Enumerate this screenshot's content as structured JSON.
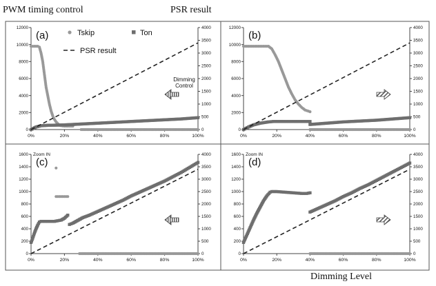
{
  "header": {
    "left_label": "PWM timing control",
    "right_label": "PSR result",
    "bottom_label": "Dimming Level"
  },
  "colors": {
    "tskip": "#999999",
    "ton": "#6e6e6e",
    "psr": "#222222",
    "frame": "#555555"
  },
  "legend": {
    "tskip": "Tskip",
    "ton": "Ton",
    "psr": "PSR result"
  },
  "icons": {
    "left": "left-arrow-hatched-icon",
    "right": "right-arrow-hatched-icon"
  },
  "chart_data": [
    {
      "panel": "(a)",
      "type": "scatter",
      "xlabel": "",
      "ylabel": "",
      "annotation": "Dimming Control",
      "arrow": "left",
      "xlim": [
        0,
        100
      ],
      "xticks": [
        "0%",
        "20%",
        "40%",
        "60%",
        "80%",
        "100%"
      ],
      "ylim": [
        0,
        12000
      ],
      "yticks": [
        0,
        2000,
        4000,
        6000,
        8000,
        10000,
        12000
      ],
      "y2lim": [
        0,
        4000
      ],
      "y2ticks": [
        0,
        500,
        1000,
        1500,
        2000,
        2500,
        3000,
        3500,
        4000
      ],
      "series": [
        {
          "name": "Tskip",
          "marker": "circle",
          "axis": "left",
          "segments": [
            [
              [
                0,
                9800
              ],
              [
                2,
                9800
              ],
              [
                4,
                9800
              ],
              [
                5,
                9700
              ],
              [
                6,
                9000
              ],
              [
                7,
                8000
              ],
              [
                8,
                6500
              ],
              [
                9,
                5000
              ],
              [
                10,
                4000
              ],
              [
                11,
                3000
              ],
              [
                12,
                2200
              ],
              [
                13,
                1600
              ],
              [
                14,
                1200
              ],
              [
                15,
                900
              ],
              [
                16,
                700
              ],
              [
                17,
                500
              ],
              [
                18,
                450
              ],
              [
                20,
                400
              ],
              [
                22,
                400
              ],
              [
                25,
                400
              ]
            ],
            [
              [
                30,
                0
              ],
              [
                100,
                0
              ]
            ]
          ]
        },
        {
          "name": "Ton",
          "marker": "square",
          "axis": "left",
          "segments": [
            [
              [
                0,
                0
              ],
              [
                3,
                300
              ],
              [
                6,
                450
              ],
              [
                10,
                500
              ],
              [
                15,
                520
              ],
              [
                20,
                550
              ],
              [
                25,
                600
              ],
              [
                30,
                650
              ],
              [
                40,
                750
              ],
              [
                50,
                850
              ],
              [
                60,
                950
              ],
              [
                70,
                1050
              ],
              [
                80,
                1150
              ],
              [
                90,
                1250
              ],
              [
                100,
                1400
              ]
            ]
          ]
        },
        {
          "name": "PSR result",
          "style": "dashed",
          "axis": "right",
          "points": [
            [
              0,
              0
            ],
            [
              100,
              3400
            ]
          ]
        }
      ]
    },
    {
      "panel": "(b)",
      "type": "scatter",
      "xlabel": "",
      "ylabel": "",
      "annotation": "",
      "arrow": "right",
      "xlim": [
        0,
        100
      ],
      "xticks": [
        "0%",
        "20%",
        "40%",
        "60%",
        "80%",
        "100%"
      ],
      "ylim": [
        0,
        12000
      ],
      "yticks": [
        0,
        2000,
        4000,
        6000,
        8000,
        10000,
        12000
      ],
      "y2lim": [
        0,
        4000
      ],
      "y2ticks": [
        0,
        500,
        1000,
        1500,
        2000,
        2500,
        3000,
        3500,
        4000
      ],
      "series": [
        {
          "name": "Tskip",
          "marker": "circle",
          "axis": "left",
          "segments": [
            [
              [
                0,
                9800
              ],
              [
                5,
                9800
              ],
              [
                10,
                9800
              ],
              [
                15,
                9800
              ],
              [
                17,
                9500
              ],
              [
                19,
                8800
              ],
              [
                21,
                8000
              ],
              [
                23,
                7000
              ],
              [
                25,
                6000
              ],
              [
                27,
                5000
              ],
              [
                29,
                4200
              ],
              [
                31,
                3500
              ],
              [
                33,
                3000
              ],
              [
                35,
                2600
              ],
              [
                37,
                2300
              ],
              [
                40,
                2100
              ]
            ],
            [
              [
                40,
                0
              ],
              [
                100,
                0
              ]
            ]
          ]
        },
        {
          "name": "Ton",
          "marker": "square",
          "axis": "left",
          "segments": [
            [
              [
                0,
                0
              ],
              [
                3,
                300
              ],
              [
                6,
                550
              ],
              [
                10,
                750
              ],
              [
                15,
                900
              ],
              [
                18,
                950
              ],
              [
                25,
                950
              ],
              [
                30,
                950
              ],
              [
                35,
                950
              ],
              [
                40,
                950
              ]
            ],
            [
              [
                40,
                600
              ],
              [
                50,
                750
              ],
              [
                60,
                900
              ],
              [
                70,
                1000
              ],
              [
                80,
                1100
              ],
              [
                90,
                1250
              ],
              [
                100,
                1400
              ]
            ]
          ]
        },
        {
          "name": "PSR result",
          "style": "dashed",
          "axis": "right",
          "points": [
            [
              0,
              0
            ],
            [
              100,
              3400
            ]
          ]
        }
      ]
    },
    {
      "panel": "(c)",
      "type": "scatter",
      "xlabel": "",
      "ylabel": "",
      "annotation": "Zoom IN",
      "arrow": "left",
      "xlim": [
        0,
        100
      ],
      "xticks": [
        "0%",
        "20%",
        "40%",
        "60%",
        "80%",
        "100%"
      ],
      "ylim": [
        0,
        1600
      ],
      "yticks": [
        0,
        200,
        400,
        600,
        800,
        1000,
        1200,
        1400,
        1600
      ],
      "y2lim": [
        0,
        4000
      ],
      "y2ticks": [
        0,
        500,
        1000,
        1500,
        2000,
        2500,
        3000,
        3500,
        4000
      ],
      "series": [
        {
          "name": "Tskip",
          "marker": "circle",
          "axis": "left",
          "segments": [
            [
              [
                15,
                1380
              ]
            ],
            [
              [
                15,
                920
              ],
              [
                16,
                920
              ],
              [
                17,
                920
              ],
              [
                18,
                920
              ],
              [
                19,
                920
              ],
              [
                20,
                920
              ],
              [
                21,
                920
              ],
              [
                22,
                920
              ]
            ],
            [
              [
                29,
                0
              ],
              [
                40,
                0
              ],
              [
                50,
                0
              ],
              [
                60,
                0
              ],
              [
                70,
                0
              ],
              [
                80,
                0
              ],
              [
                90,
                0
              ],
              [
                100,
                0
              ]
            ]
          ]
        },
        {
          "name": "Ton",
          "marker": "square",
          "axis": "left",
          "segments": [
            [
              [
                0,
                180
              ],
              [
                1,
                250
              ],
              [
                2,
                330
              ],
              [
                3,
                400
              ],
              [
                4,
                460
              ],
              [
                5,
                510
              ],
              [
                6,
                520
              ],
              [
                8,
                520
              ],
              [
                10,
                520
              ],
              [
                12,
                520
              ],
              [
                14,
                520
              ],
              [
                16,
                530
              ],
              [
                18,
                540
              ],
              [
                20,
                570
              ],
              [
                22,
                620
              ]
            ],
            [
              [
                23,
                470
              ],
              [
                25,
                490
              ],
              [
                27,
                520
              ],
              [
                29,
                550
              ],
              [
                31,
                580
              ],
              [
                35,
                620
              ],
              [
                40,
                680
              ],
              [
                45,
                740
              ],
              [
                50,
                800
              ],
              [
                55,
                860
              ],
              [
                60,
                930
              ],
              [
                65,
                990
              ],
              [
                70,
                1050
              ],
              [
                75,
                1110
              ],
              [
                80,
                1170
              ],
              [
                85,
                1240
              ],
              [
                90,
                1310
              ],
              [
                95,
                1390
              ],
              [
                100,
                1470
              ]
            ]
          ]
        },
        {
          "name": "PSR result",
          "style": "dashed",
          "axis": "right",
          "points": [
            [
              0,
              0
            ],
            [
              100,
              3400
            ]
          ]
        }
      ]
    },
    {
      "panel": "(d)",
      "type": "scatter",
      "xlabel": "",
      "ylabel": "",
      "annotation": "Zoom IN",
      "arrow": "right",
      "xlim": [
        0,
        100
      ],
      "xticks": [
        "0%",
        "20%",
        "40%",
        "60%",
        "80%",
        "100%"
      ],
      "ylim": [
        0,
        1600
      ],
      "yticks": [
        0,
        200,
        400,
        600,
        800,
        1000,
        1200,
        1400,
        1600
      ],
      "y2lim": [
        0,
        4000
      ],
      "y2ticks": [
        0,
        500,
        1000,
        1500,
        2000,
        2500,
        3000,
        3500,
        4000
      ],
      "series": [
        {
          "name": "Tskip",
          "marker": "circle",
          "axis": "left",
          "segments": [
            [
              [
                40,
                0
              ],
              [
                50,
                0
              ],
              [
                60,
                0
              ],
              [
                70,
                0
              ],
              [
                80,
                0
              ],
              [
                90,
                0
              ],
              [
                100,
                0
              ]
            ]
          ]
        },
        {
          "name": "Ton",
          "marker": "square",
          "axis": "left",
          "segments": [
            [
              [
                0,
                180
              ],
              [
                2,
                300
              ],
              [
                4,
                420
              ],
              [
                6,
                540
              ],
              [
                8,
                650
              ],
              [
                10,
                750
              ],
              [
                12,
                850
              ],
              [
                14,
                930
              ],
              [
                16,
                990
              ],
              [
                17,
                1000
              ],
              [
                20,
                1000
              ],
              [
                25,
                990
              ],
              [
                30,
                980
              ],
              [
                35,
                970
              ],
              [
                38,
                970
              ],
              [
                40,
                980
              ]
            ],
            [
              [
                40,
                670
              ],
              [
                45,
                730
              ],
              [
                50,
                790
              ],
              [
                55,
                850
              ],
              [
                60,
                920
              ],
              [
                65,
                980
              ],
              [
                70,
                1050
              ],
              [
                75,
                1110
              ],
              [
                80,
                1180
              ],
              [
                85,
                1250
              ],
              [
                90,
                1320
              ],
              [
                95,
                1390
              ],
              [
                100,
                1460
              ]
            ]
          ]
        },
        {
          "name": "PSR result",
          "style": "dashed",
          "axis": "right",
          "points": [
            [
              0,
              0
            ],
            [
              100,
              3400
            ]
          ]
        }
      ]
    }
  ]
}
